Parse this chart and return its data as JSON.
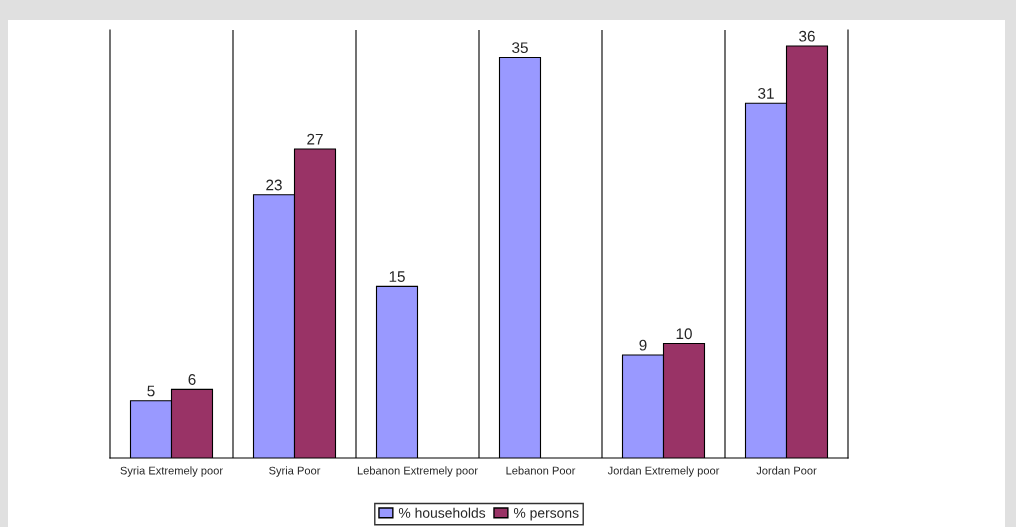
{
  "chart_data": {
    "type": "bar",
    "categories": [
      "Syria Extremely poor",
      "Syria Poor",
      "Lebanon Extremely poor",
      "Lebanon Poor",
      "Jordan Extremely poor",
      "Jordan Poor"
    ],
    "series": [
      {
        "name": "% households",
        "color": "#9999ff",
        "values": [
          5,
          23,
          15,
          35,
          9,
          31
        ]
      },
      {
        "name": "% persons",
        "color": "#993366",
        "values": [
          6,
          27,
          null,
          null,
          10,
          36
        ]
      }
    ],
    "ylim": [
      0,
      37.4
    ],
    "data_labels": true,
    "grid": "x",
    "legend": "bottom",
    "tick_labels": "x"
  }
}
